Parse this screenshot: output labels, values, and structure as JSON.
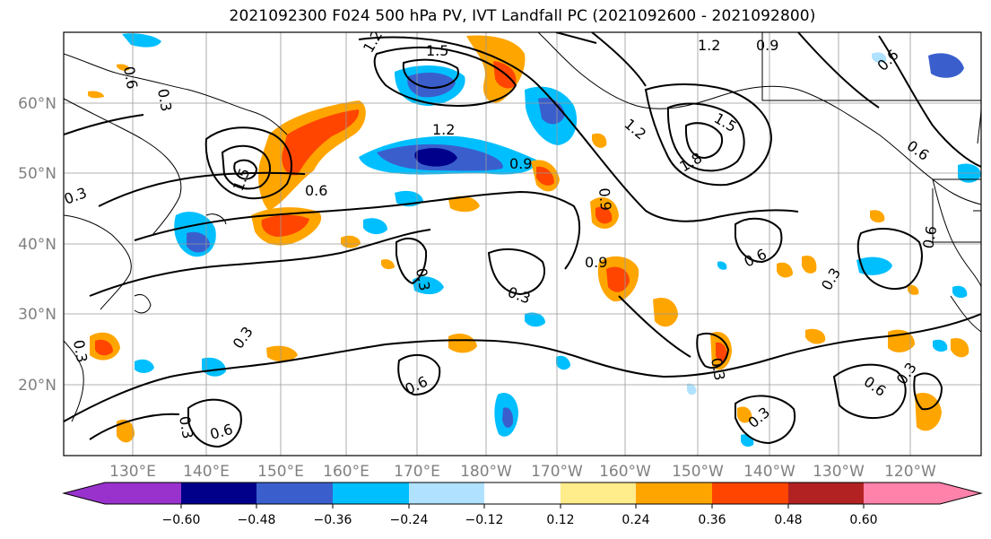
{
  "title": "2021092300 F024 500 hPa PV, IVT Landfall PC (2021092600 - 2021092800)",
  "lat_labels": [
    "60°N",
    "50°N",
    "40°N",
    "30°N",
    "20°N"
  ],
  "lon_labels": [
    "130°E",
    "140°E",
    "150°E",
    "160°E",
    "170°E",
    "180°W",
    "170°W",
    "160°W",
    "150°W",
    "140°W",
    "130°W",
    "120°W"
  ],
  "colorbar": {
    "ticks": [
      "−0.60",
      "−0.48",
      "−0.36",
      "−0.24",
      "−0.12",
      "0.12",
      "0.24",
      "0.36",
      "0.48",
      "0.60"
    ],
    "colors": [
      "#9932cc",
      "#00008b",
      "#3a5fcd",
      "#00bfff",
      "#b0e2ff",
      "#ffffff",
      "#ffec8b",
      "#ffa500",
      "#ff4500",
      "#b22222",
      "#ff82ab"
    ]
  },
  "contour_labels": [
    "1.5",
    "1.2",
    "1.2",
    "0.9",
    "0.6",
    "1.2",
    "1.5",
    "1.8",
    "1.2",
    "0.9",
    "0.9",
    "0.6",
    "0.3",
    "1.5",
    "0.6",
    "0.6",
    "0.3",
    "0.9",
    "0.6",
    "0.3",
    "0.3",
    "0.3",
    "0.6",
    "0.6",
    "0.3",
    "0.3",
    "0.3",
    "0.6",
    "0.3",
    "0.6",
    "0.3",
    "0.3"
  ],
  "fills": {
    "orange": "#ffa500",
    "red_orange": "#ff4500",
    "yellow": "#ffec8b",
    "sky": "#00bfff",
    "royal": "#3a5fcd",
    "navy": "#00008b",
    "light_blue": "#b0e2ff"
  }
}
